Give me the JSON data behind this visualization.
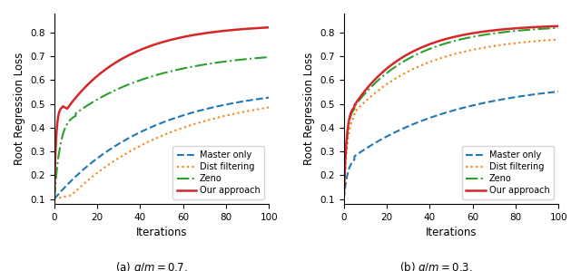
{
  "xlabel": "Iterations",
  "ylabel": "Root Regression Loss",
  "legend_labels": [
    "Master only",
    "Dist filtering",
    "Zeno",
    "Our approach"
  ],
  "colors": [
    "#1f77b4",
    "#ff7f0e",
    "#2ca02c",
    "#d62728"
  ],
  "linestyles": [
    "--",
    ":",
    "-.",
    "-"
  ],
  "linewidths": [
    1.5,
    1.5,
    1.5,
    1.8
  ],
  "caption_a": "(a) $q/m = 0.7$.",
  "caption_b": "(b) $q/m = 0.3$."
}
